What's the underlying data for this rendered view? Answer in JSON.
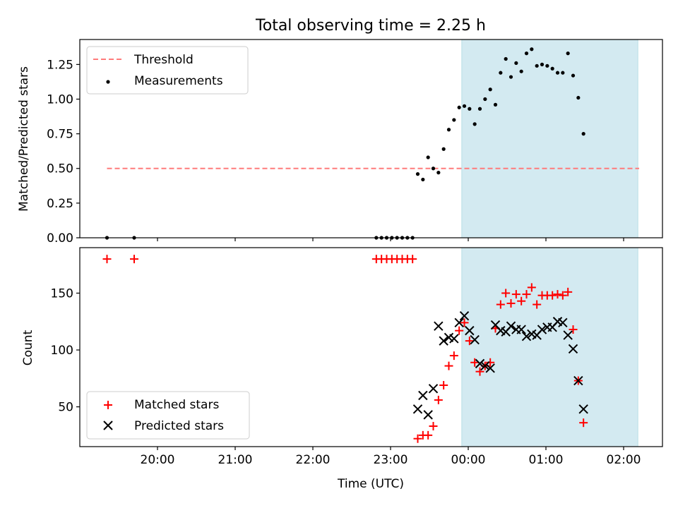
{
  "chart_data": [
    {
      "type": "scatter",
      "title": "Total observing time = 2.25 h",
      "xlabel": "",
      "ylabel": "Matched/Predicted stars",
      "ylim": [
        0,
        1.43
      ],
      "xlim": [
        "19:00",
        "02:30"
      ],
      "yticks": [
        0,
        0.25,
        0.5,
        0.75,
        1.0,
        1.25
      ],
      "yticklabels": [
        "0.00",
        "0.25",
        "0.50",
        "0.75",
        "1.00",
        "1.25"
      ],
      "xticks": [
        "20:00",
        "21:00",
        "22:00",
        "23:00",
        "00:00",
        "01:00",
        "02:00"
      ],
      "xticklabels": [],
      "shaded_span": [
        "23:55",
        "02:11"
      ],
      "shaded_color": "#d3eaf1",
      "legend_position": "upper left",
      "threshold": {
        "name": "Threshold",
        "value": 0.5,
        "x_range": [
          "19:21",
          "02:12"
        ],
        "color": "#ff7b7b",
        "style": "dashed"
      },
      "series": [
        {
          "name": "Measurements",
          "marker": "dot",
          "color": "#000000",
          "points": [
            [
              "19:21",
              0.0
            ],
            [
              "19:42",
              0.0
            ],
            [
              "22:49",
              0.0
            ],
            [
              "22:53",
              0.0
            ],
            [
              "22:57",
              0.0
            ],
            [
              "23:01",
              0.0
            ],
            [
              "23:05",
              0.0
            ],
            [
              "23:09",
              0.0
            ],
            [
              "23:13",
              0.0
            ],
            [
              "23:17",
              0.0
            ],
            [
              "23:21",
              0.46
            ],
            [
              "23:25",
              0.42
            ],
            [
              "23:29",
              0.58
            ],
            [
              "23:33",
              0.5
            ],
            [
              "23:37",
              0.47
            ],
            [
              "23:41",
              0.64
            ],
            [
              "23:45",
              0.78
            ],
            [
              "23:49",
              0.85
            ],
            [
              "23:53",
              0.94
            ],
            [
              "23:57",
              0.95
            ],
            [
              "00:01",
              0.93
            ],
            [
              "00:05",
              0.82
            ],
            [
              "00:09",
              0.93
            ],
            [
              "00:13",
              1.0
            ],
            [
              "00:17",
              1.07
            ],
            [
              "00:21",
              0.96
            ],
            [
              "00:25",
              1.19
            ],
            [
              "00:29",
              1.29
            ],
            [
              "00:33",
              1.16
            ],
            [
              "00:37",
              1.26
            ],
            [
              "00:41",
              1.2
            ],
            [
              "00:45",
              1.33
            ],
            [
              "00:49",
              1.36
            ],
            [
              "00:53",
              1.24
            ],
            [
              "00:57",
              1.25
            ],
            [
              "01:01",
              1.24
            ],
            [
              "01:05",
              1.22
            ],
            [
              "01:09",
              1.19
            ],
            [
              "01:13",
              1.19
            ],
            [
              "01:17",
              1.33
            ],
            [
              "01:21",
              1.17
            ],
            [
              "01:25",
              1.01
            ],
            [
              "01:29",
              0.75
            ]
          ]
        }
      ]
    },
    {
      "type": "scatter",
      "title": "",
      "xlabel": "Time (UTC)",
      "ylabel": "Count",
      "ylim": [
        15,
        190
      ],
      "xlim": [
        "19:00",
        "02:30"
      ],
      "yticks": [
        50,
        100,
        150
      ],
      "yticklabels": [
        "50",
        "100",
        "150"
      ],
      "xticks": [
        "20:00",
        "21:00",
        "22:00",
        "23:00",
        "00:00",
        "01:00",
        "02:00"
      ],
      "xticklabels": [
        "20:00",
        "21:00",
        "22:00",
        "23:00",
        "00:00",
        "01:00",
        "02:00"
      ],
      "shaded_span": [
        "23:55",
        "02:11"
      ],
      "shaded_color": "#d3eaf1",
      "legend_position": "lower left",
      "series": [
        {
          "name": "Matched stars",
          "marker": "plus",
          "color": "#ff0000",
          "points": [
            [
              "19:21",
              180
            ],
            [
              "19:42",
              180
            ],
            [
              "22:49",
              180
            ],
            [
              "22:53",
              180
            ],
            [
              "22:57",
              180
            ],
            [
              "23:01",
              180
            ],
            [
              "23:05",
              180
            ],
            [
              "23:09",
              180
            ],
            [
              "23:13",
              180
            ],
            [
              "23:17",
              180
            ],
            [
              "23:21",
              22
            ],
            [
              "23:25",
              25
            ],
            [
              "23:29",
              25
            ],
            [
              "23:33",
              33
            ],
            [
              "23:37",
              56
            ],
            [
              "23:41",
              69
            ],
            [
              "23:45",
              86
            ],
            [
              "23:49",
              95
            ],
            [
              "23:53",
              117
            ],
            [
              "23:57",
              124
            ],
            [
              "00:01",
              108
            ],
            [
              "00:05",
              89
            ],
            [
              "00:09",
              81
            ],
            [
              "00:13",
              86
            ],
            [
              "00:17",
              89
            ],
            [
              "00:21",
              119
            ],
            [
              "00:25",
              140
            ],
            [
              "00:29",
              150
            ],
            [
              "00:33",
              141
            ],
            [
              "00:37",
              149
            ],
            [
              "00:41",
              143
            ],
            [
              "00:45",
              149
            ],
            [
              "00:49",
              155
            ],
            [
              "00:53",
              140
            ],
            [
              "00:57",
              148
            ],
            [
              "01:01",
              148
            ],
            [
              "01:05",
              148
            ],
            [
              "01:09",
              149
            ],
            [
              "01:13",
              148
            ],
            [
              "01:17",
              151
            ],
            [
              "01:21",
              118
            ],
            [
              "01:25",
              73
            ],
            [
              "01:29",
              36
            ]
          ]
        },
        {
          "name": "Predicted stars",
          "marker": "x",
          "color": "#000000",
          "points": [
            [
              "23:21",
              48
            ],
            [
              "23:25",
              60
            ],
            [
              "23:29",
              43
            ],
            [
              "23:33",
              66
            ],
            [
              "23:37",
              121
            ],
            [
              "23:41",
              108
            ],
            [
              "23:45",
              111
            ],
            [
              "23:49",
              110
            ],
            [
              "23:53",
              124
            ],
            [
              "23:57",
              130
            ],
            [
              "00:01",
              117
            ],
            [
              "00:05",
              109
            ],
            [
              "00:09",
              88
            ],
            [
              "00:13",
              86
            ],
            [
              "00:17",
              84
            ],
            [
              "00:21",
              122
            ],
            [
              "00:25",
              117
            ],
            [
              "00:29",
              116
            ],
            [
              "00:33",
              121
            ],
            [
              "00:37",
              118
            ],
            [
              "00:41",
              118
            ],
            [
              "00:45",
              112
            ],
            [
              "00:49",
              114
            ],
            [
              "00:53",
              113
            ],
            [
              "00:57",
              118
            ],
            [
              "01:01",
              120
            ],
            [
              "01:05",
              120
            ],
            [
              "01:09",
              125
            ],
            [
              "01:13",
              124
            ],
            [
              "01:17",
              113
            ],
            [
              "01:21",
              101
            ],
            [
              "01:25",
              73
            ],
            [
              "01:29",
              48
            ]
          ]
        }
      ]
    }
  ]
}
